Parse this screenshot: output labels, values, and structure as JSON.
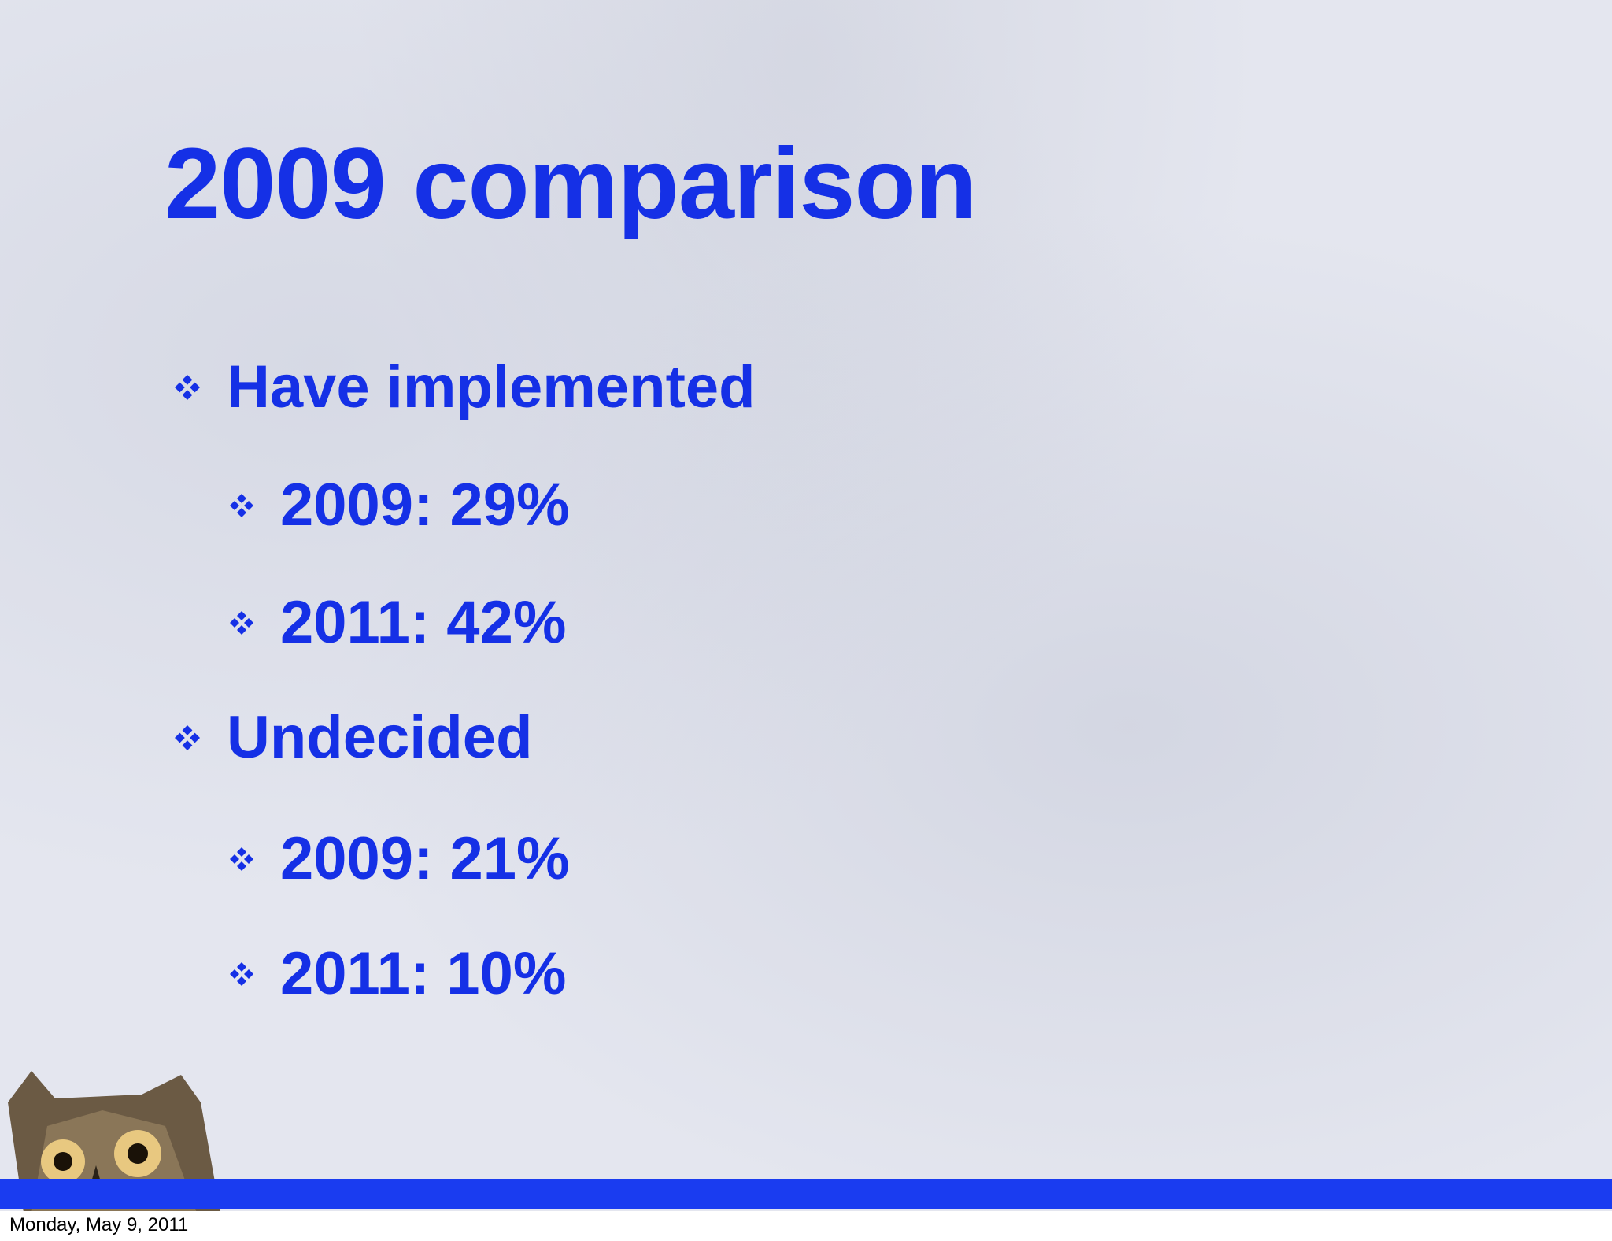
{
  "title": "2009 comparison",
  "bullets": [
    {
      "text": "Have implemented",
      "items": [
        "2009: 29%",
        "2011: 42%"
      ]
    },
    {
      "text": "Undecided",
      "items": [
        "2009: 21%",
        "2011: 10%"
      ]
    }
  ],
  "footer": {
    "date": "Monday, May 9, 2011"
  }
}
